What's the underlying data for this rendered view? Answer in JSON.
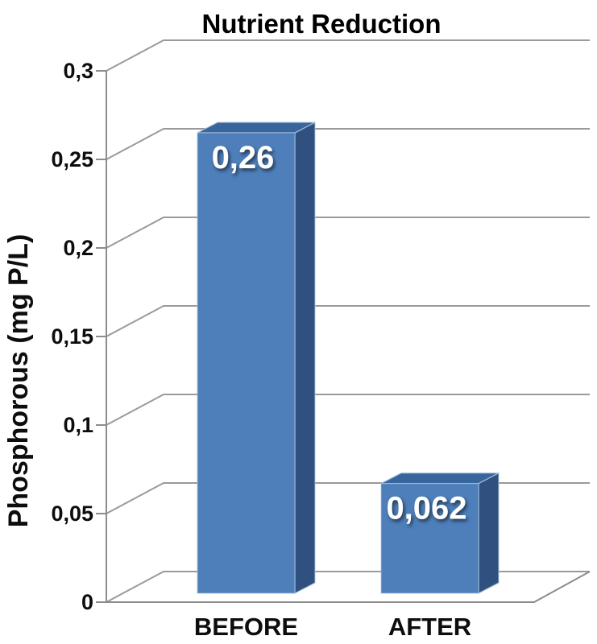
{
  "title": "Nutrient Reduction",
  "chart_data": {
    "type": "bar",
    "style": "3d-column",
    "title": "Nutrient Reduction",
    "xlabel": "",
    "ylabel": "Phosphorous (mg P/L)",
    "categories": [
      "BEFORE",
      "AFTER"
    ],
    "values": [
      0.26,
      0.062
    ],
    "value_labels": [
      "0,26",
      "0,062"
    ],
    "decimal_separator": ",",
    "ylim": [
      0,
      0.3
    ],
    "yticks": [
      {
        "value": 0,
        "label": "0"
      },
      {
        "value": 0.05,
        "label": "0,05"
      },
      {
        "value": 0.1,
        "label": "0,1"
      },
      {
        "value": 0.15,
        "label": "0,15"
      },
      {
        "value": 0.2,
        "label": "0,2"
      },
      {
        "value": 0.25,
        "label": "0,25"
      },
      {
        "value": 0.3,
        "label": "0,3"
      }
    ],
    "grid": true,
    "legend_position": "none",
    "colors": {
      "bar_front": "#4e7fba",
      "bar_top": "#38659c",
      "bar_side": "#30517f",
      "bar_edge": "#aec4de",
      "gridline": "#9a9a9a",
      "axis_line": "#8c8c8c",
      "value_text": "#ffffff",
      "text": "#0d0d0d",
      "background": "#ffffff"
    }
  }
}
